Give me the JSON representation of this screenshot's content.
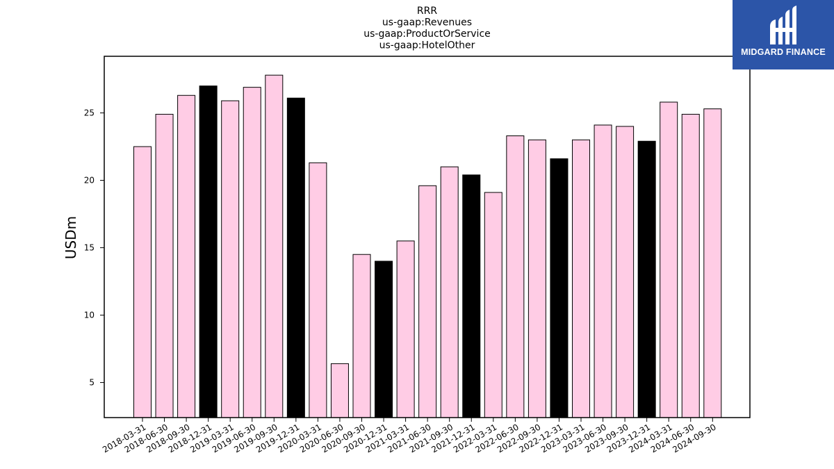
{
  "logo": {
    "text": "MIDGARD FINANCE",
    "icon": "midgard-logo-icon",
    "background": "#2c55a8"
  },
  "chart_data": {
    "type": "bar",
    "title_lines": [
      "RRR",
      "us-gaap:Revenues",
      "us-gaap:ProductOrService",
      "us-gaap:HotelOther"
    ],
    "xlabel": "",
    "ylabel": "USDm",
    "ylim": [
      2.4,
      29.2
    ],
    "yticks": [
      5,
      10,
      15,
      20,
      25
    ],
    "grid": false,
    "colors": {
      "quarter": "#ffccE5",
      "year_end": "#000000",
      "edge": "#000000"
    },
    "categories": [
      "2018-03-31",
      "2018-06-30",
      "2018-09-30",
      "2018-12-31",
      "2019-03-31",
      "2019-06-30",
      "2019-09-30",
      "2019-12-31",
      "2020-03-31",
      "2020-06-30",
      "2020-09-30",
      "2020-12-31",
      "2021-03-31",
      "2021-06-30",
      "2021-09-30",
      "2021-12-31",
      "2022-03-31",
      "2022-06-30",
      "2022-09-30",
      "2022-12-31",
      "2023-03-31",
      "2023-06-30",
      "2023-09-30",
      "2023-12-31",
      "2024-03-31",
      "2024-06-30",
      "2024-09-30"
    ],
    "values": [
      22.5,
      24.9,
      26.3,
      27.0,
      25.9,
      26.9,
      27.8,
      26.1,
      21.3,
      6.4,
      14.5,
      14.0,
      15.5,
      19.6,
      21.0,
      20.4,
      19.1,
      23.3,
      23.0,
      21.6,
      23.0,
      24.1,
      24.0,
      22.9,
      25.8,
      24.9,
      25.3
    ],
    "highlight": [
      false,
      false,
      false,
      true,
      false,
      false,
      false,
      true,
      false,
      false,
      false,
      true,
      false,
      false,
      false,
      true,
      false,
      false,
      false,
      true,
      false,
      false,
      false,
      true,
      false,
      false,
      false
    ]
  }
}
